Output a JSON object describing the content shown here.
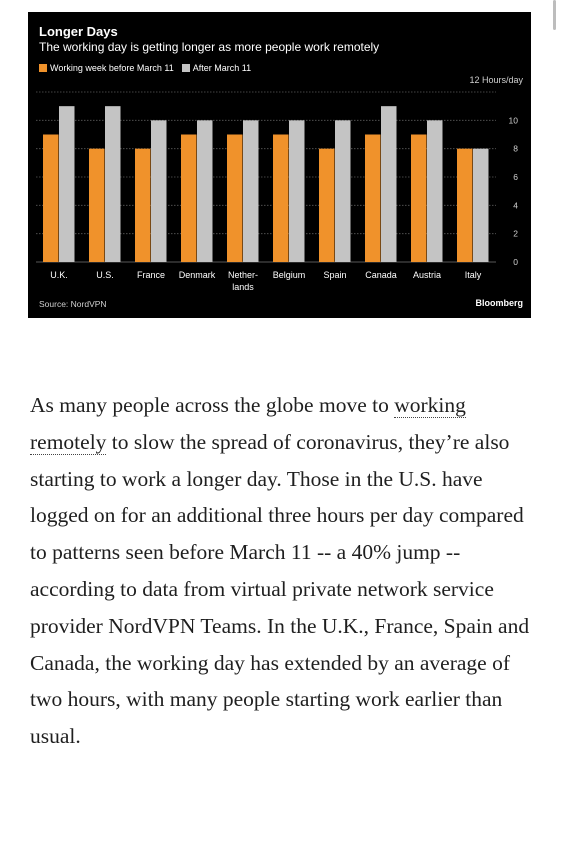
{
  "chart": {
    "title": "Longer Days",
    "subtitle": "The working day is getting longer as more people work remotely",
    "legend": [
      {
        "label": "Working week before March 11",
        "color": "#f0922b"
      },
      {
        "label": "After March 11",
        "color": "#c4c4c4"
      }
    ],
    "unit_label": "12 Hours/day",
    "source": "Source: NordVPN",
    "brand": "Bloomberg"
  },
  "chart_data": {
    "type": "bar",
    "categories": [
      [
        "U.K."
      ],
      [
        "U.S."
      ],
      [
        "France"
      ],
      [
        "Denmark"
      ],
      [
        "Nether-",
        "lands"
      ],
      [
        "Belgium"
      ],
      [
        "Spain"
      ],
      [
        "Canada"
      ],
      [
        "Austria"
      ],
      [
        "Italy"
      ]
    ],
    "series": [
      {
        "name": "Working week before March 11",
        "values": [
          9,
          8,
          8,
          9,
          9,
          9,
          8,
          9,
          9,
          8
        ],
        "color": "#f0922b"
      },
      {
        "name": "After March 11",
        "values": [
          11,
          11,
          10,
          10,
          10,
          10,
          10,
          11,
          10,
          8
        ],
        "color": "#c4c4c4"
      }
    ],
    "yticks": [
      0,
      2,
      4,
      6,
      8,
      10
    ],
    "ylim": [
      0,
      12
    ],
    "grid": true
  },
  "article": {
    "before_link": "As many people across the globe move to ",
    "link_text": "working remotely",
    "after_link": " to slow the spread of coronavirus, they’re also starting to work a longer day. Those in the U.S. have logged on for an additional three hours per day compared to patterns seen before March 11 -- a 40% jump -- according to data from virtual private network service provider NordVPN Teams. In the U.K., France, Spain and Canada, the working day has extended by an average of two hours, with many people starting work earlier than usual."
  }
}
